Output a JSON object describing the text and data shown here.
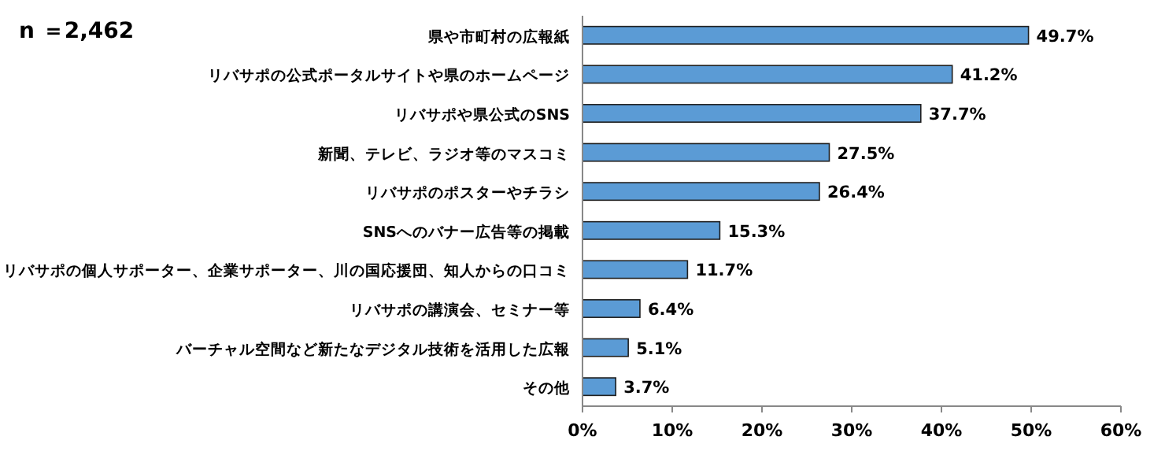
{
  "chart_data": {
    "type": "bar",
    "orientation": "horizontal",
    "categories": [
      "県や市町村の広報紙",
      "リバサポの公式ポータルサイトや県のホームページ",
      "リバサポや県公式のSNS",
      "新聞、テレビ、ラジオ等のマスコミ",
      "リバサポのポスターやチラシ",
      "SNSへのバナー広告等の掲載",
      "リバサポの個人サポーター、企業サポーター、川の国応援団、知人からの口コミ",
      "リバサポの講演会、セミナー等",
      "バーチャル空間など新たなデジタル技術を活用した広報",
      "その他"
    ],
    "values": [
      49.7,
      41.2,
      37.7,
      27.5,
      26.4,
      15.3,
      11.7,
      6.4,
      5.1,
      3.7
    ],
    "value_labels": [
      "49.7%",
      "41.2%",
      "37.7%",
      "27.5%",
      "26.4%",
      "15.3%",
      "11.7%",
      "6.4%",
      "5.1%",
      "3.7%"
    ],
    "color": "#5b9bd5",
    "xlim": [
      0,
      60
    ],
    "xticks": [
      {
        "value": 0,
        "label": "0%"
      },
      {
        "value": 10,
        "label": "10%"
      },
      {
        "value": 20,
        "label": "20%"
      },
      {
        "value": 30,
        "label": "30%"
      },
      {
        "value": 40,
        "label": "40%"
      },
      {
        "value": 50,
        "label": "50%"
      },
      {
        "value": 60,
        "label": "60%"
      }
    ],
    "annotations": [
      "n ＝2,462"
    ]
  }
}
